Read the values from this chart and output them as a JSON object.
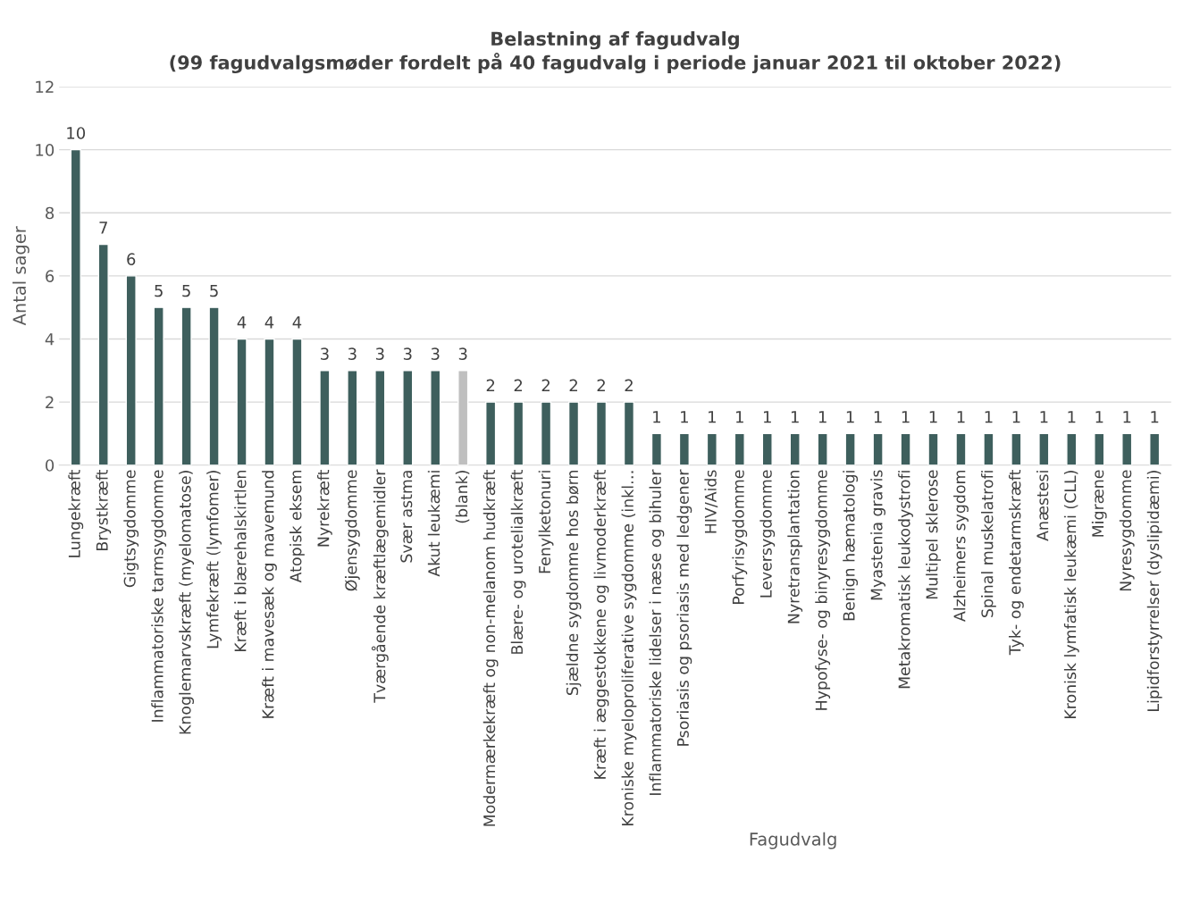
{
  "chart_data": {
    "type": "bar",
    "title": "Belastning af fagudvalg\n(99 fagudvalgsmøder fordelt på 40 fagudvalg i periode januar 2021 til oktober 2022)",
    "xlabel": "Fagudvalg",
    "ylabel": "Antal sager",
    "categories": [
      "Lungekræft",
      "Brystkræft",
      "Gigtsygdomme",
      "Inflammatoriske tarmsygdomme",
      "Knoglemarvskræft (myelomatose)",
      "Lymfekræft (lymfomer)",
      "Kræft i blærehalskirtlen",
      "Kræft i mavesæk og mavemund",
      "Atopisk eksem",
      "Nyrekræft",
      "Øjensygdomme",
      "Tværgående kræftlægemidler",
      "Svær astma",
      "Akut leukæmi",
      "(blank)",
      "Modermærkekræft og non-melanom hudkræft",
      "Blære- og urotelialkræft",
      "Fenylketonuri",
      "Sjældne sygdomme hos børn",
      "Kræft i æggestokkene og livmoderkræft",
      "Kroniske myeloproliferative sygdomme (inkl…",
      "Inflammatoriske lidelser i næse og bihuler",
      "Psoriasis og psoriasis med ledgener",
      "HIV/Aids",
      "Porfyrisygdomme",
      "Leversygdomme",
      "Nyretransplantation",
      "Hypofyse- og binyresygdomme",
      "Benign hæmatologi",
      "Myastenia gravis",
      "Metakromatisk leukodystrofi",
      "Multipel sklerose",
      "Alzheimers sygdom",
      "Spinal muskelatrofi",
      "Tyk- og endetarmskræft",
      "Anæstesi",
      "Kronisk lymfatisk leukæmi (CLL)",
      "Migræne",
      "Nyresygdomme",
      "Lipidforstyrrelser (dyslipidæmi)"
    ],
    "values": [
      10,
      7,
      6,
      5,
      5,
      5,
      4,
      4,
      4,
      3,
      3,
      3,
      3,
      3,
      3,
      2,
      2,
      2,
      2,
      2,
      2,
      1,
      1,
      1,
      1,
      1,
      1,
      1,
      1,
      1,
      1,
      1,
      1,
      1,
      1,
      1,
      1,
      1,
      1,
      1
    ],
    "colors": [
      "#3e5f5d",
      "#3e5f5d",
      "#3e5f5d",
      "#3e5f5d",
      "#3e5f5d",
      "#3e5f5d",
      "#3e5f5d",
      "#3e5f5d",
      "#3e5f5d",
      "#3e5f5d",
      "#3e5f5d",
      "#3e5f5d",
      "#3e5f5d",
      "#3e5f5d",
      "#bfbfbf",
      "#3e5f5d",
      "#3e5f5d",
      "#3e5f5d",
      "#3e5f5d",
      "#3e5f5d",
      "#3e5f5d",
      "#3e5f5d",
      "#3e5f5d",
      "#3e5f5d",
      "#3e5f5d",
      "#3e5f5d",
      "#3e5f5d",
      "#3e5f5d",
      "#3e5f5d",
      "#3e5f5d",
      "#3e5f5d",
      "#3e5f5d",
      "#3e5f5d",
      "#3e5f5d",
      "#3e5f5d",
      "#3e5f5d",
      "#3e5f5d",
      "#3e5f5d",
      "#3e5f5d",
      "#3e5f5d"
    ],
    "ylim": [
      0,
      12
    ],
    "yticks": [
      0,
      2,
      4,
      6,
      8,
      10,
      12
    ],
    "grid": "y",
    "data_labels": true
  }
}
